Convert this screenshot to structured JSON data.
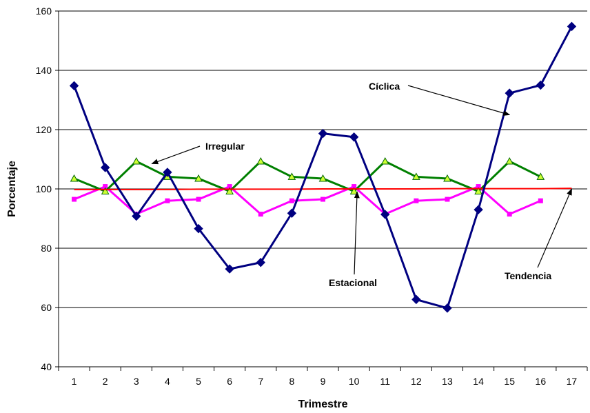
{
  "chart_data": {
    "type": "line",
    "title": "",
    "xlabel": "Trimestre",
    "ylabel": "Porcentaje",
    "x": [
      1,
      2,
      3,
      4,
      5,
      6,
      7,
      8,
      9,
      10,
      11,
      12,
      13,
      14,
      15,
      16,
      17
    ],
    "ylim": [
      40,
      160
    ],
    "yticks": [
      40,
      60,
      80,
      100,
      120,
      140,
      160
    ],
    "grid": true,
    "series": [
      {
        "name": "Cíclica",
        "color": "#000080",
        "marker": "diamond",
        "values": [
          134.8,
          107.2,
          90.8,
          105.6,
          86.6,
          73.0,
          75.2,
          91.8,
          118.7,
          117.5,
          91.4,
          62.7,
          59.8,
          93.0,
          132.3,
          135.0,
          154.8
        ]
      },
      {
        "name": "Irregular",
        "color": "#008000",
        "marker": "triangle",
        "values": [
          103.5,
          99.2,
          109.3,
          104.1,
          103.5,
          99.2,
          109.3,
          104.1,
          103.5,
          99.2,
          109.3,
          104.1,
          103.5,
          99.2,
          109.3,
          104.1,
          null
        ]
      },
      {
        "name": "Estacional",
        "color": "#ff00ff",
        "marker": "square",
        "values": [
          96.5,
          100.8,
          91.5,
          96.0,
          96.5,
          100.8,
          91.5,
          96.0,
          96.5,
          100.8,
          91.5,
          96.0,
          96.5,
          100.8,
          91.5,
          96.0,
          null
        ]
      },
      {
        "name": "Tendencia",
        "color": "#ff0000",
        "marker": "none",
        "values": [
          99.8,
          99.8,
          99.8,
          99.8,
          99.9,
          99.9,
          99.9,
          99.9,
          100.0,
          100.0,
          100.0,
          100.0,
          100.1,
          100.1,
          100.1,
          100.1,
          100.2
        ]
      }
    ],
    "annotations": [
      {
        "text": "Cíclica",
        "target_x": 15,
        "target_y": 125
      },
      {
        "text": "Irregular",
        "target_x": 3.5,
        "target_y": 108.5
      },
      {
        "text": "Estacional",
        "target_x": 10.1,
        "target_y": 99
      },
      {
        "text": "Tendencia",
        "target_x": 17,
        "target_y": 100
      }
    ]
  }
}
